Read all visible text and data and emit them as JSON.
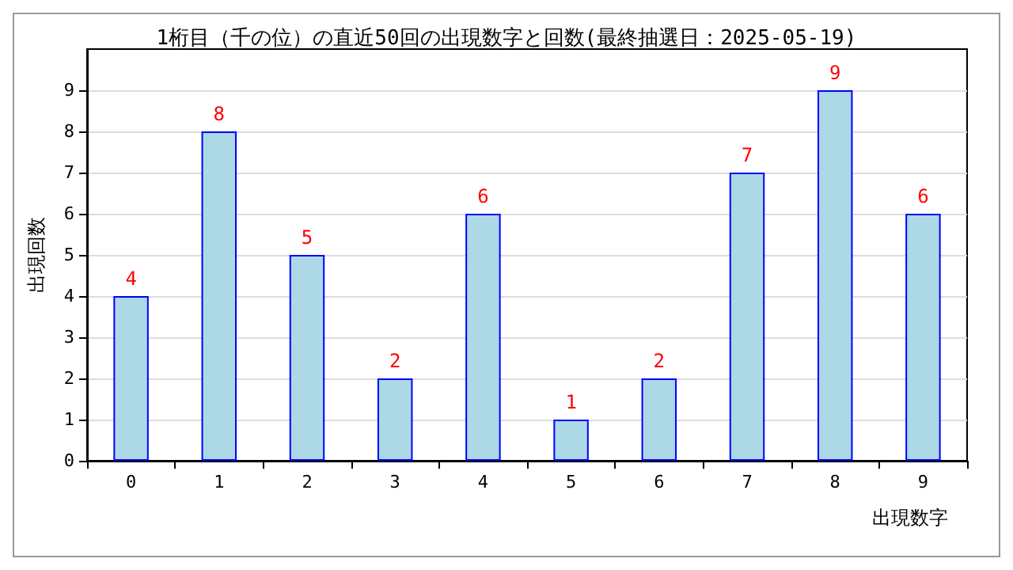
{
  "chart_data": {
    "type": "bar",
    "title": "1桁目（千の位）の直近50回の出現数字と回数(最終抽選日：2025-05-19)",
    "xlabel": "出現数字",
    "ylabel": "出現回数",
    "categories": [
      "0",
      "1",
      "2",
      "3",
      "4",
      "5",
      "6",
      "7",
      "8",
      "9"
    ],
    "values": [
      4,
      8,
      5,
      2,
      6,
      1,
      2,
      7,
      9,
      6
    ],
    "color": "#add8e6",
    "ylim": [
      0,
      10
    ],
    "yticks": [
      0,
      1,
      2,
      3,
      4,
      5,
      6,
      7,
      8,
      9
    ],
    "grid": "y",
    "data_labels": true
  }
}
